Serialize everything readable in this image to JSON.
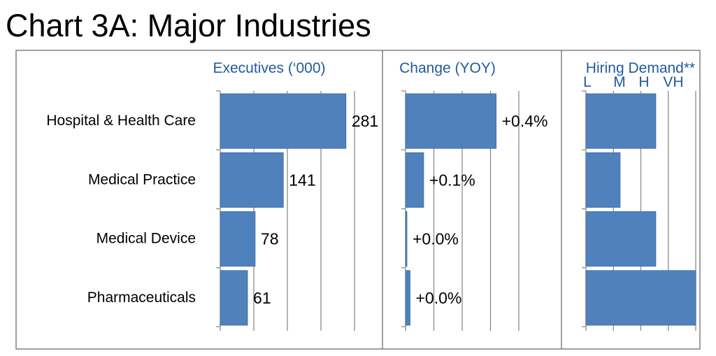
{
  "title": "Chart 3A: Major Industries",
  "chart_data": {
    "type": "bar",
    "orientation": "horizontal",
    "categories": [
      "Hospital & Health Care",
      "Medical Practice",
      "Medical Device",
      "Pharmaceuticals"
    ],
    "bar_color": "#4f81bd",
    "panels": [
      {
        "title": "Executives (‘000)",
        "values": [
          281,
          141,
          78,
          61
        ],
        "labels": [
          "281",
          "141",
          "78",
          "61"
        ],
        "xlim": [
          0,
          300
        ],
        "grid": true
      },
      {
        "title": "Change (YOY)",
        "values": [
          0.4,
          0.08,
          0.0,
          0.02
        ],
        "labels": [
          "+0.4%",
          "+0.1%",
          "+0.0%",
          "+0.0%"
        ],
        "xlim": [
          0,
          0.5
        ],
        "grid": true
      },
      {
        "title": "Hiring Demand**",
        "ticklabels": [
          "L",
          "M",
          "H",
          "VH"
        ],
        "values": [
          2.45,
          1.2,
          2.45,
          3.85
        ],
        "xlim": [
          0,
          3.85
        ],
        "grid": true
      }
    ]
  }
}
